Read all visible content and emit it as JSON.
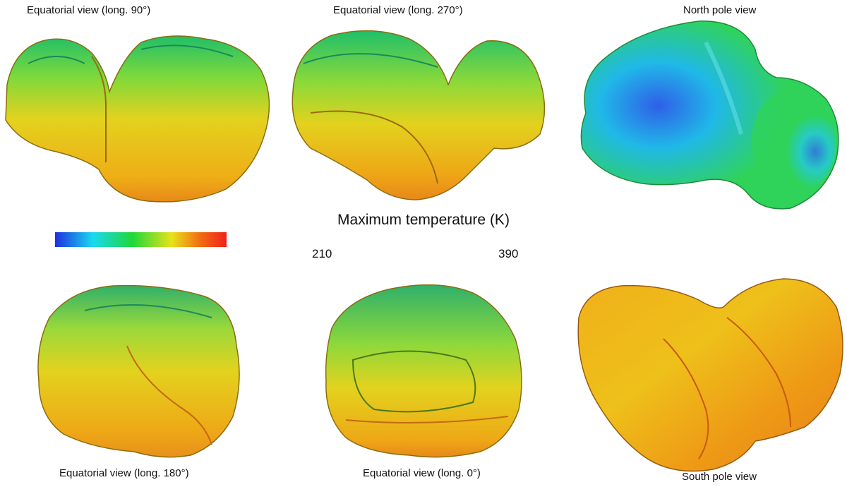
{
  "views": [
    {
      "id": "long90",
      "caption": "Equatorial view (long. 90°)"
    },
    {
      "id": "long270",
      "caption": "Equatorial view (long. 270°)"
    },
    {
      "id": "north",
      "caption": "North pole view"
    },
    {
      "id": "long180",
      "caption": "Equatorial view (long. 180°)"
    },
    {
      "id": "long0",
      "caption": "Equatorial view (long. 0°)"
    },
    {
      "id": "south",
      "caption": "South pole view"
    }
  ],
  "colorbar": {
    "title": "Maximum temperature (K)",
    "min": "210",
    "max": "390",
    "colors": [
      "#1f2fe0",
      "#18d9f0",
      "#1fd83a",
      "#e8e21a",
      "#f26a12",
      "#f0211a"
    ]
  }
}
